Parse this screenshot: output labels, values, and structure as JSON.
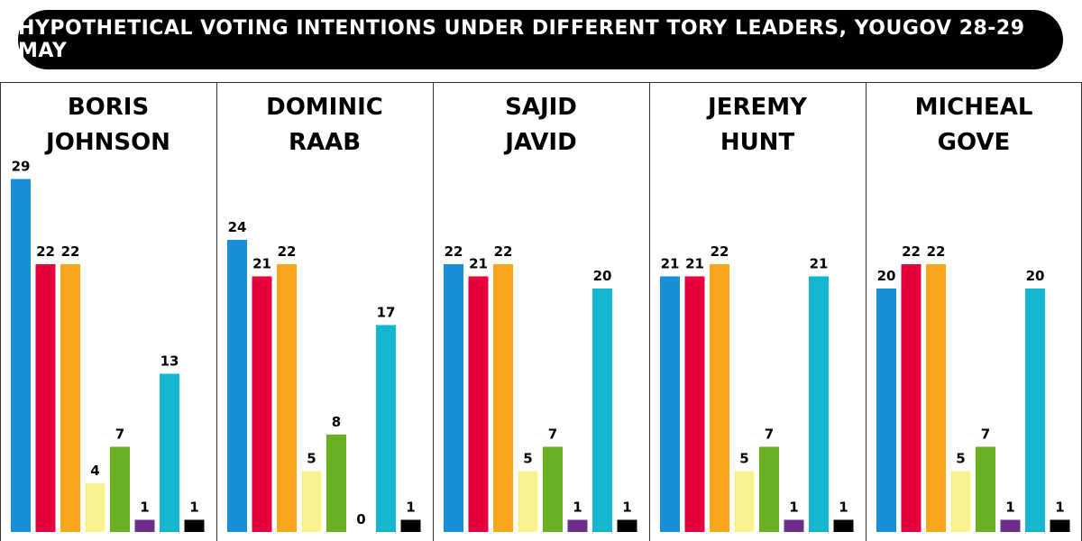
{
  "title": "HYPOTHETICAL VOTING INTENTIONS UNDER DIFFERENT TORY LEADERS, YOUGOV 28-29 MAY",
  "chart_data": {
    "type": "bar",
    "legend": "none",
    "grid": false,
    "ylim": [
      0,
      32
    ],
    "series_colors": [
      "#1a8fd8",
      "#e4003b",
      "#faa61a",
      "#fbf391",
      "#6ab023",
      "#6b2e8a",
      "#12b6cf",
      "#000000"
    ],
    "panels": [
      {
        "name_lines": [
          "BORIS",
          "JOHNSON"
        ],
        "values": [
          29,
          22,
          22,
          4,
          7,
          1,
          13,
          1
        ],
        "colors": [
          "#1a8fd8",
          "#e4003b",
          "#faa61a",
          "#fbf391",
          "#6ab023",
          "#6b2e8a",
          "#12b6cf",
          "#000000"
        ]
      },
      {
        "name_lines": [
          "DOMINIC",
          "RAAB"
        ],
        "values": [
          24,
          21,
          22,
          5,
          8,
          0,
          17,
          1
        ],
        "colors": [
          "#1a8fd8",
          "#e4003b",
          "#faa61a",
          "#fbf391",
          "#6ab023",
          "#6b2e8a",
          "#12b6cf",
          "#000000"
        ]
      },
      {
        "name_lines": [
          "SAJID",
          "JAVID"
        ],
        "values": [
          22,
          21,
          22,
          5,
          7,
          1,
          20,
          1
        ],
        "colors": [
          "#1a8fd8",
          "#e4003b",
          "#faa61a",
          "#fbf391",
          "#6ab023",
          "#6b2e8a",
          "#12b6cf",
          "#000000"
        ]
      },
      {
        "name_lines": [
          "JEREMY",
          "HUNT"
        ],
        "values": [
          21,
          21,
          22,
          5,
          7,
          1,
          21,
          1
        ],
        "colors": [
          "#1a8fd8",
          "#e4003b",
          "#faa61a",
          "#fbf391",
          "#6ab023",
          "#6b2e8a",
          "#12b6cf",
          "#000000"
        ]
      },
      {
        "name_lines": [
          "MICHEAL",
          "GOVE"
        ],
        "values": [
          20,
          22,
          22,
          5,
          7,
          1,
          20,
          1
        ],
        "colors": [
          "#1a8fd8",
          "#e4003b",
          "#faa61a",
          "#fbf391",
          "#6ab023",
          "#6b2e8a",
          "#12b6cf",
          "#000000"
        ]
      }
    ]
  }
}
